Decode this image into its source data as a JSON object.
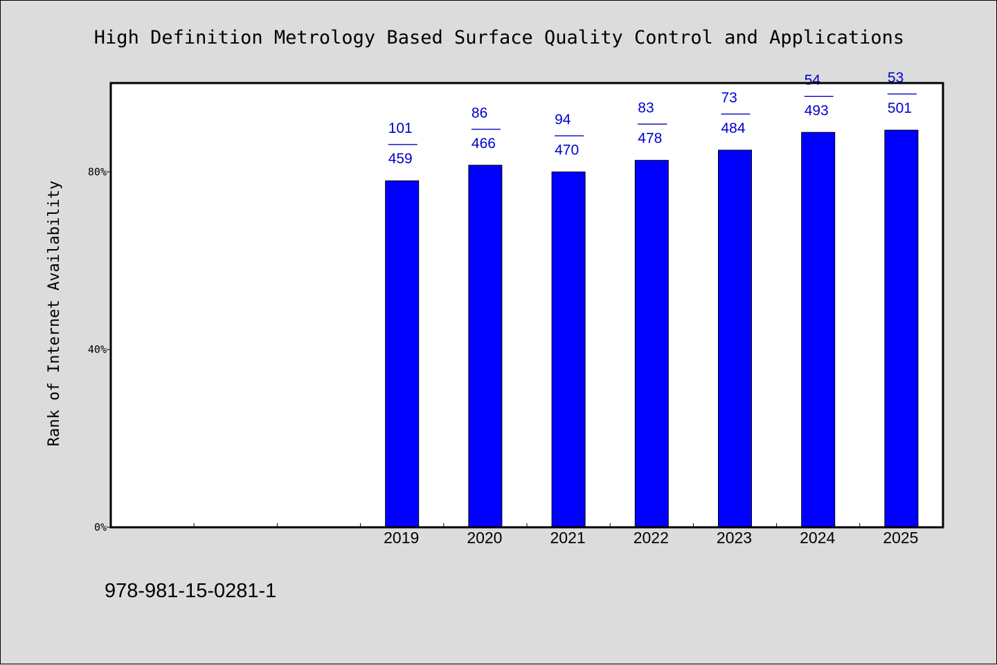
{
  "chart_data": {
    "type": "bar",
    "title": "High Definition Metrology Based Surface Quality Control and Applications",
    "xlabel": "",
    "ylabel": "Rank of Internet Availability",
    "categories": [
      "",
      "",
      "",
      "2019",
      "2020",
      "2021",
      "2022",
      "2023",
      "2024",
      "2025"
    ],
    "values": [
      null,
      null,
      null,
      78,
      81.5,
      80,
      82.6,
      84.9,
      88.9,
      89.4
    ],
    "rank": [
      null,
      null,
      null,
      101,
      86,
      94,
      83,
      73,
      54,
      53
    ],
    "total": [
      null,
      null,
      null,
      459,
      466,
      470,
      478,
      484,
      493,
      501
    ],
    "separator": "——",
    "ylim": [
      0,
      100
    ],
    "yticks": [
      0,
      40,
      80
    ],
    "ytick_labels": [
      "0%",
      "40%",
      "80%"
    ],
    "bar_color": "#0000ff",
    "label_color": "#0000cc",
    "grid": false,
    "legend": "none"
  },
  "footer": {
    "isbn": "978-981-15-0281-1"
  }
}
